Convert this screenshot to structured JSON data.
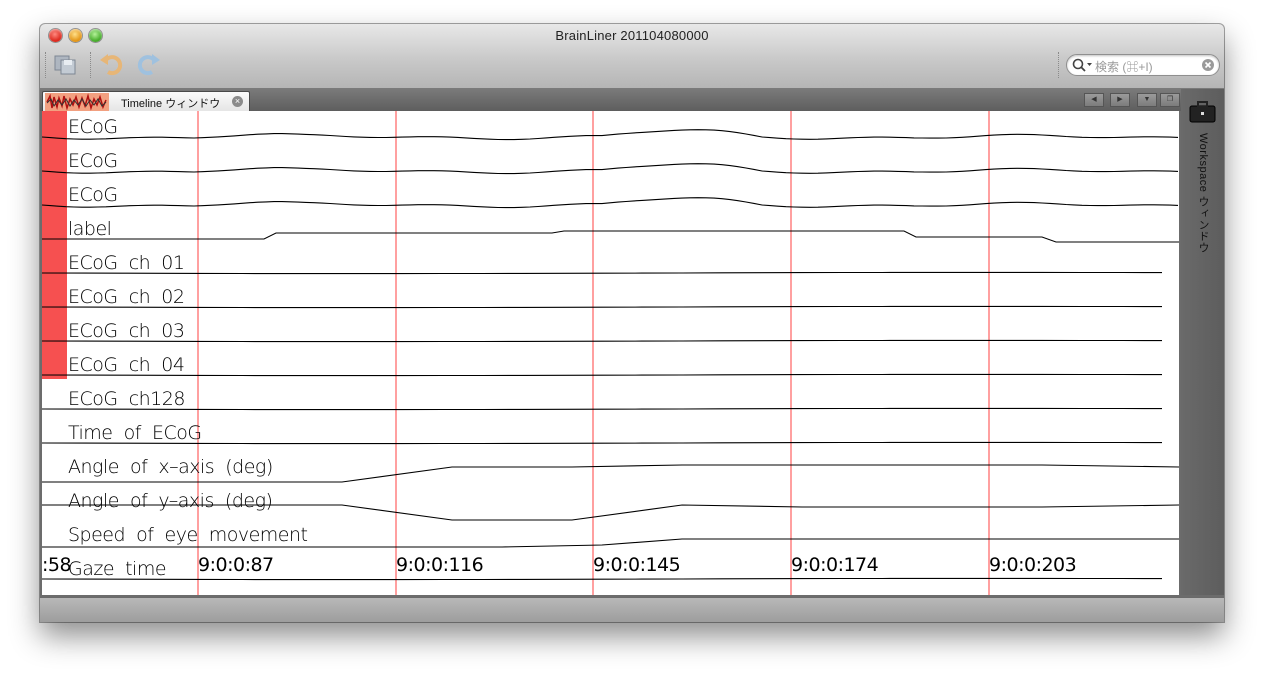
{
  "window": {
    "title": "BrainLiner 201104080000"
  },
  "toolbar": {
    "buttons": [
      {
        "name": "save-icon"
      },
      {
        "name": "undo-icon"
      },
      {
        "name": "redo-icon"
      }
    ],
    "search_placeholder": "検索 (⌘+I)"
  },
  "tabs": [
    {
      "label": "Timeline ウィンドウ",
      "icon": "waveform-icon"
    }
  ],
  "sidebar": {
    "label": "Workspace ウィンドウ",
    "icon": "briefcase-icon"
  },
  "timeline": {
    "channels": [
      "ECoG",
      "ECoG",
      "ECoG",
      "label",
      "ECoG  ch  01",
      "ECoG  ch  02",
      "ECoG  ch  03",
      "ECoG  ch  04",
      "ECoG  ch128",
      "Time  of  ECoG",
      "Angle  of  x–axis  (deg)",
      "Angle  of  y–axis  (deg)",
      "Speed  of  eye  movement",
      "Gaze  time"
    ],
    "time_ticks": [
      ":58",
      "9:0:0:87",
      "9:0:0:116",
      "9:0:0:145",
      "9:0:0:174",
      "9:0:0:203"
    ],
    "marker_color": "#f65050",
    "gridline_color": "#ff4040"
  }
}
